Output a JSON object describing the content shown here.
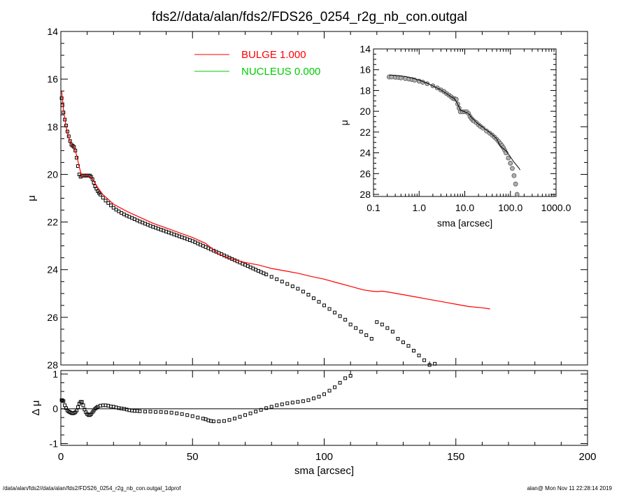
{
  "title": "fds2//data/alan/fds2/FDS26_0254_r2g_nb_con.outgal",
  "footer": {
    "left": "/data/alan/fds2//data/alan/fds2/FDS26_0254_r2g_nb_con.outgal_1dprof",
    "right": "alan@  Mon Nov 11 22:28:14 2019"
  },
  "colors": {
    "bulge": "#ff0000",
    "nucleus": "#00cc00",
    "data": "#000000"
  },
  "chart_data": [
    {
      "id": "main",
      "type": "scatter",
      "xlabel": "",
      "ylabel": "μ",
      "xlim": [
        0,
        200
      ],
      "ylim": [
        28,
        14
      ],
      "yticks": [
        14,
        16,
        18,
        20,
        22,
        24,
        26,
        28
      ],
      "xtick_labels": [],
      "legend": [
        {
          "name": "BULGE  1.000",
          "color": "#ff0000"
        },
        {
          "name": "NUCLEUS  0.000",
          "color": "#00cc00"
        }
      ],
      "legend_placement": "top-center",
      "series": [
        {
          "kind": "points",
          "x": [
            0.3,
            0.6,
            1,
            1.5,
            2,
            2.5,
            3,
            3.5,
            4,
            4.5,
            5,
            5.5,
            6,
            6.5,
            7,
            7.5,
            8,
            8.5,
            9,
            9.5,
            10,
            10.5,
            11,
            11.5,
            12,
            12.5,
            13,
            13.5,
            14,
            14.5,
            15,
            16,
            17,
            18,
            19,
            20,
            21,
            22,
            23,
            24,
            25,
            26,
            27,
            28,
            29,
            30,
            31,
            32,
            33,
            34,
            35,
            36,
            37,
            38,
            39,
            40,
            41,
            42,
            43,
            44,
            45,
            46,
            47,
            48,
            49,
            50,
            51,
            52,
            53,
            54,
            55,
            56,
            57,
            58,
            59,
            60,
            61,
            62,
            63,
            64,
            65,
            66,
            67,
            68,
            69,
            70,
            71,
            72,
            73,
            74,
            75,
            76,
            77,
            78,
            80,
            82,
            84,
            86,
            88,
            90,
            92,
            94,
            96,
            98,
            100,
            102,
            104,
            106,
            108,
            110,
            112,
            114,
            116,
            118,
            120,
            122,
            124,
            126,
            128,
            130,
            132,
            134,
            136,
            138,
            140,
            142,
            144
          ],
          "y": [
            16.8,
            17.1,
            17.4,
            17.7,
            17.95,
            18.2,
            18.4,
            18.6,
            18.75,
            18.8,
            18.85,
            19.0,
            19.3,
            19.65,
            20.0,
            20.1,
            20.05,
            20.05,
            20.05,
            20.05,
            20.05,
            20.05,
            20.05,
            20.1,
            20.2,
            20.35,
            20.5,
            20.6,
            20.7,
            20.78,
            20.85,
            20.98,
            21.1,
            21.2,
            21.3,
            21.4,
            21.48,
            21.55,
            21.62,
            21.68,
            21.73,
            21.78,
            21.83,
            21.88,
            21.93,
            21.98,
            22.02,
            22.07,
            22.11,
            22.16,
            22.2,
            22.24,
            22.28,
            22.32,
            22.36,
            22.4,
            22.44,
            22.48,
            22.52,
            22.56,
            22.6,
            22.64,
            22.68,
            22.72,
            22.76,
            22.8,
            22.85,
            22.9,
            22.95,
            23.0,
            23.05,
            23.1,
            23.15,
            23.2,
            23.25,
            23.3,
            23.35,
            23.4,
            23.45,
            23.5,
            23.55,
            23.6,
            23.65,
            23.7,
            23.75,
            23.8,
            23.85,
            23.9,
            23.95,
            24.0,
            24.05,
            24.1,
            24.15,
            24.2,
            24.3,
            24.4,
            24.5,
            24.6,
            24.7,
            24.8,
            24.92,
            25.05,
            25.2,
            25.35,
            25.5,
            25.65,
            25.8,
            25.95,
            26.1,
            26.3,
            26.45,
            26.6,
            26.75,
            26.9,
            26.2,
            26.3,
            26.45,
            26.6,
            26.9,
            27.05,
            27.2,
            27.4,
            27.6,
            27.8,
            28.0,
            27.95,
            28.1
          ]
        },
        {
          "kind": "line",
          "name": "BULGE  1.000",
          "color": "#ff0000",
          "x": [
            0.3,
            1,
            2,
            3,
            4,
            5,
            6,
            7,
            8,
            9,
            10,
            11,
            12,
            14,
            16,
            18,
            20,
            25,
            30,
            35,
            40,
            45,
            50,
            55,
            60,
            65,
            70,
            75,
            80,
            85,
            90,
            95,
            100,
            105,
            110,
            115,
            118,
            120,
            122,
            125,
            130,
            135,
            140,
            145,
            150,
            155,
            160,
            163
          ],
          "y": [
            16.5,
            17.3,
            18.0,
            18.45,
            18.75,
            18.85,
            19.2,
            19.7,
            20.1,
            20.05,
            20.05,
            20.1,
            20.2,
            20.55,
            20.85,
            21.05,
            21.25,
            21.55,
            21.8,
            22.05,
            22.25,
            22.45,
            22.65,
            22.9,
            23.35,
            23.55,
            23.7,
            23.8,
            23.95,
            24.05,
            24.15,
            24.28,
            24.4,
            24.55,
            24.7,
            24.85,
            24.9,
            24.92,
            24.9,
            24.95,
            25.05,
            25.15,
            25.25,
            25.35,
            25.45,
            25.55,
            25.6,
            25.65
          ]
        }
      ]
    },
    {
      "id": "residual",
      "type": "scatter",
      "xlabel": "sma [arcsec]",
      "ylabel": "Δ μ",
      "xlim": [
        0,
        200
      ],
      "ylim": [
        -1.05,
        1.1
      ],
      "xticks": [
        0,
        50,
        100,
        150,
        200
      ],
      "yticks": [
        -1,
        0,
        1
      ],
      "zero_line": true,
      "x": [
        0.3,
        0.6,
        1,
        1.5,
        2,
        2.5,
        3,
        3.5,
        4,
        4.5,
        5,
        5.5,
        6,
        6.5,
        7,
        7.5,
        8,
        8.5,
        9,
        9.5,
        10,
        10.5,
        11,
        11.5,
        12,
        12.5,
        13,
        13.5,
        14,
        15,
        16,
        17,
        18,
        19,
        20,
        21,
        22,
        23,
        24,
        25,
        26,
        27,
        28,
        29,
        30,
        32,
        34,
        36,
        38,
        40,
        42,
        44,
        46,
        48,
        50,
        52,
        54,
        55,
        56,
        57,
        58,
        60,
        62,
        64,
        66,
        68,
        70,
        72,
        74,
        76,
        78,
        80,
        82,
        84,
        86,
        88,
        90,
        92,
        94,
        96,
        98,
        100,
        102,
        104,
        106,
        108,
        110
      ],
      "y": [
        0.25,
        0.24,
        0.22,
        0.1,
        0.02,
        -0.05,
        -0.08,
        -0.1,
        -0.12,
        -0.13,
        -0.12,
        -0.1,
        -0.05,
        0.05,
        0.15,
        0.2,
        0.2,
        0.1,
        -0.02,
        -0.1,
        -0.15,
        -0.18,
        -0.18,
        -0.15,
        -0.1,
        -0.05,
        0.0,
        0.03,
        0.06,
        0.09,
        0.1,
        0.1,
        0.09,
        0.07,
        0.06,
        0.04,
        0.02,
        0.01,
        0.0,
        -0.02,
        -0.04,
        -0.05,
        -0.06,
        -0.06,
        -0.07,
        -0.08,
        -0.08,
        -0.09,
        -0.09,
        -0.1,
        -0.11,
        -0.13,
        -0.15,
        -0.18,
        -0.21,
        -0.25,
        -0.28,
        -0.3,
        -0.33,
        -0.35,
        -0.36,
        -0.36,
        -0.35,
        -0.32,
        -0.28,
        -0.23,
        -0.18,
        -0.13,
        -0.08,
        -0.03,
        0.02,
        0.06,
        0.1,
        0.13,
        0.16,
        0.18,
        0.2,
        0.22,
        0.25,
        0.3,
        0.35,
        0.42,
        0.52,
        0.62,
        0.75,
        0.88,
        0.95
      ]
    },
    {
      "id": "inset",
      "type": "scatter",
      "xlabel": "sma [arcsec]",
      "ylabel": "μ",
      "xscale": "log",
      "xlim": [
        0.1,
        1000
      ],
      "ylim": [
        28.2,
        14
      ],
      "xticks": [
        0.1,
        1,
        10,
        100,
        1000
      ],
      "xtick_labels": [
        "0.1",
        "1.0",
        "10.0",
        "100.0",
        "1000.0"
      ],
      "yticks": [
        14,
        16,
        18,
        20,
        22,
        24,
        26,
        28
      ],
      "points": {
        "x": [
          0.22,
          0.25,
          0.3,
          0.35,
          0.4,
          0.5,
          0.6,
          0.7,
          0.8,
          1.0,
          1.2,
          1.5,
          2.0,
          2.5,
          3.0,
          3.5,
          4.0,
          4.5,
          5.0,
          5.5,
          6.0,
          6.5,
          7.0,
          7.5,
          8.0,
          9.0,
          10,
          11,
          12,
          13,
          14,
          15,
          16,
          18,
          20,
          22,
          25,
          30,
          35,
          40,
          45,
          50,
          55,
          60,
          65,
          70,
          75,
          80,
          90,
          100,
          110,
          120,
          130,
          140
        ],
        "y": [
          16.7,
          16.7,
          16.72,
          16.75,
          16.78,
          16.85,
          16.9,
          16.95,
          17.0,
          17.1,
          17.2,
          17.35,
          17.55,
          17.75,
          17.95,
          18.1,
          18.3,
          18.45,
          18.6,
          18.75,
          18.8,
          18.85,
          19.3,
          19.7,
          20.05,
          20.05,
          20.05,
          20.05,
          20.2,
          20.5,
          20.7,
          20.85,
          20.95,
          21.1,
          21.3,
          21.45,
          21.62,
          21.9,
          22.1,
          22.3,
          22.5,
          22.7,
          22.9,
          23.1,
          23.3,
          23.5,
          23.75,
          24.0,
          24.5,
          25.0,
          25.5,
          26.2,
          27.0,
          28.0
        ]
      },
      "line": {
        "x": [
          0.22,
          0.3,
          0.5,
          0.7,
          1.0,
          1.5,
          2.0,
          3.0,
          4.0,
          5.0,
          6.0,
          7.0,
          8.0,
          10,
          12,
          14,
          16,
          20,
          25,
          30,
          40,
          50,
          60,
          70,
          80,
          100,
          120,
          150,
          163
        ],
        "y": [
          16.5,
          16.55,
          16.65,
          16.8,
          17.0,
          17.3,
          17.55,
          17.95,
          18.3,
          18.6,
          18.8,
          19.3,
          19.9,
          20.05,
          20.2,
          20.6,
          20.85,
          21.25,
          21.55,
          21.8,
          22.25,
          22.65,
          23.35,
          23.6,
          23.8,
          24.4,
          24.9,
          25.4,
          25.65
        ]
      }
    }
  ]
}
